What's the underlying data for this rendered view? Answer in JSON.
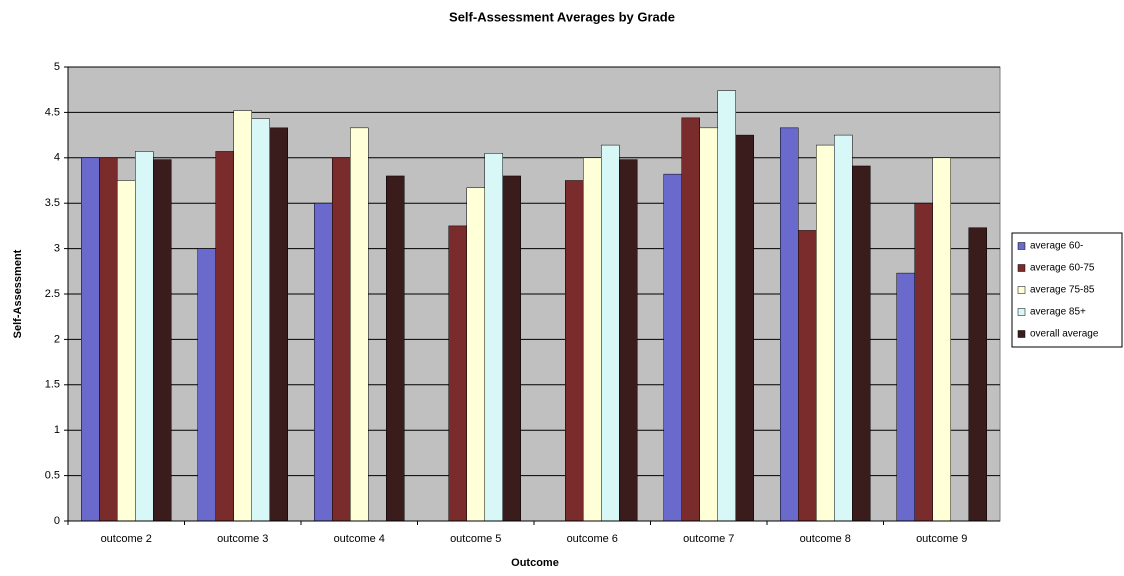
{
  "chart_data": {
    "type": "bar",
    "title": "Self-Assessment Averages by Grade",
    "x_label": "Outcome",
    "y_label": "Self-Assessment",
    "categories": [
      "outcome 2",
      "outcome 3",
      "outcome 4",
      "outcome 5",
      "outcome 6",
      "outcome 7",
      "outcome 8",
      "outcome 9"
    ],
    "series": [
      {
        "name": "average 60-",
        "color": "#6a6acc",
        "values": [
          4,
          3,
          3.5,
          null,
          null,
          3.82,
          4.33,
          2.73
        ]
      },
      {
        "name": "average 60-75",
        "color": "#7a2c2c",
        "values": [
          4,
          4.07,
          4,
          3.25,
          3.75,
          4.44,
          3.2,
          3.5
        ]
      },
      {
        "name": "average 75-85",
        "color": "#ffffd8",
        "values": [
          3.75,
          4.52,
          4.33,
          3.67,
          4,
          4.33,
          4.14,
          4
        ]
      },
      {
        "name": "average 85+",
        "color": "#d8f8f8",
        "values": [
          4.07,
          4.43,
          null,
          4.05,
          4.14,
          4.74,
          4.25,
          null
        ]
      },
      {
        "name": "overall average",
        "color": "#3a1c1c",
        "values": [
          3.98,
          4.33,
          3.8,
          3.8,
          3.98,
          4.25,
          3.91,
          3.23
        ]
      }
    ],
    "ylim": [
      0,
      5
    ],
    "yticks": [
      0,
      0.5,
      1,
      1.5,
      2,
      2.5,
      3,
      3.5,
      4,
      4.5,
      5
    ],
    "grid": true,
    "legend": "right"
  }
}
